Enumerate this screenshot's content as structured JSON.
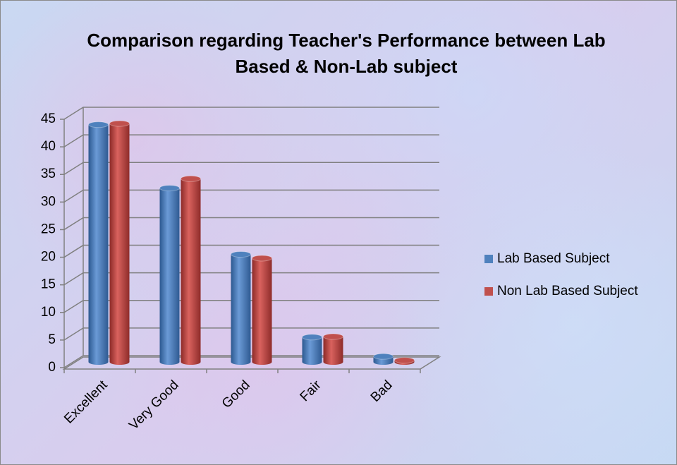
{
  "chart_data": {
    "type": "bar3d",
    "title": "Comparison regarding Teacher's Performance between Lab Based & Non-Lab subject",
    "categories": [
      "Excellent",
      "Very Good",
      "Good",
      "Fair",
      "Bad"
    ],
    "series": [
      {
        "name": "Lab Based Subject",
        "color": "#4f81bd",
        "values": [
          43,
          31.5,
          19.5,
          4.5,
          1
        ]
      },
      {
        "name": "Non Lab Based Subject",
        "color": "#c0504d",
        "values": [
          43.2,
          33.2,
          18.8,
          4.6,
          0.3
        ]
      }
    ],
    "ylim": [
      0,
      45
    ],
    "yticks": [
      0,
      5,
      10,
      15,
      20,
      25,
      30,
      35,
      40,
      45
    ],
    "grid": true,
    "legend": "right"
  }
}
